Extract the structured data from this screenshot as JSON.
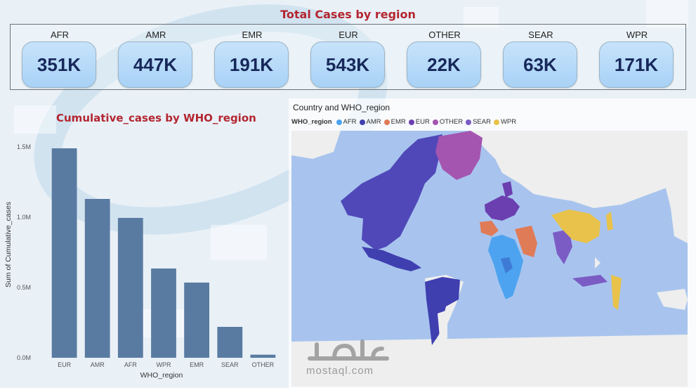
{
  "kpi_section": {
    "title": "Total Cases by region",
    "cards": [
      {
        "region": "AFR",
        "value": "351K"
      },
      {
        "region": "AMR",
        "value": "447K"
      },
      {
        "region": "EMR",
        "value": "191K"
      },
      {
        "region": "EUR",
        "value": "543K"
      },
      {
        "region": "OTHER",
        "value": "22K"
      },
      {
        "region": "SEAR",
        "value": "63K"
      },
      {
        "region": "WPR",
        "value": "171K"
      }
    ]
  },
  "chart_data": {
    "type": "bar",
    "title": "Cumulative_cases by WHO_region",
    "xlabel": "WHO_region",
    "ylabel": "Sum of Cumulative_cases",
    "categories": [
      "EUR",
      "AMR",
      "AFR",
      "WPR",
      "EMR",
      "SEAR",
      "OTHER"
    ],
    "values": [
      1490000,
      1130000,
      995000,
      635000,
      535000,
      220000,
      22000
    ],
    "ylim": [
      0,
      1500000
    ],
    "yticks": [
      0,
      500000,
      1000000,
      1500000
    ],
    "ytick_labels": [
      "0.0M",
      "0.5M",
      "1.0M",
      "1.5M"
    ],
    "bar_color": "#5a7ba1",
    "grid": false
  },
  "map": {
    "title": "Country and WHO_region",
    "legend_title": "WHO_region",
    "legend": [
      {
        "label": "AFR",
        "color": "#4da3ef"
      },
      {
        "label": "AMR",
        "color": "#3f3fb0"
      },
      {
        "label": "EMR",
        "color": "#e07b57"
      },
      {
        "label": "EUR",
        "color": "#6b3fb0"
      },
      {
        "label": "OTHER",
        "color": "#a455b0"
      },
      {
        "label": "SEAR",
        "color": "#7b5cc4"
      },
      {
        "label": "WPR",
        "color": "#e8c24a"
      }
    ],
    "ocean_color": "#a8c4ee",
    "land_color": "#eeeeee"
  },
  "watermark": {
    "text": "mostaql.com"
  }
}
